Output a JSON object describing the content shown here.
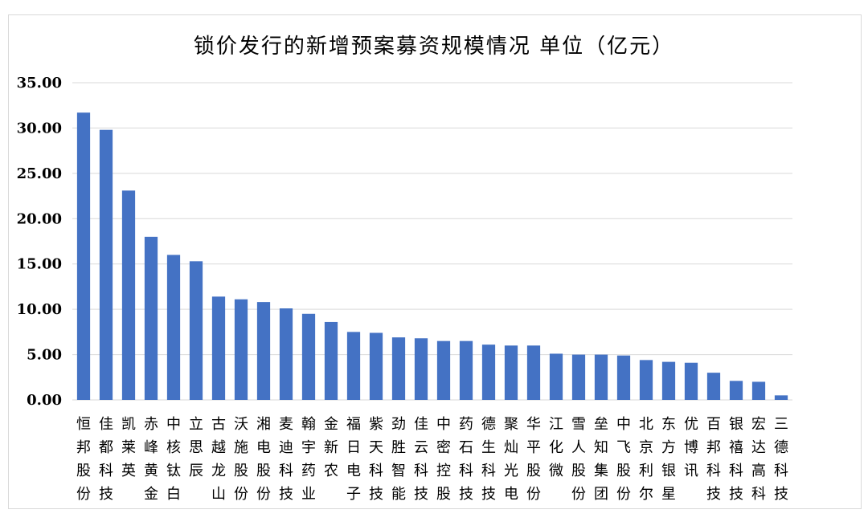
{
  "chart_data": {
    "type": "bar",
    "title": "锁价发行的新增预案募资规模情况  单位（亿元）",
    "xlabel": "",
    "ylabel": "",
    "ylim": [
      0,
      35
    ],
    "yticks": [
      "0.00",
      "5.00",
      "10.00",
      "15.00",
      "20.00",
      "25.00",
      "30.00",
      "35.00"
    ],
    "grid": true,
    "legend": "none",
    "bar_color": "#4472C4",
    "categories": [
      "恒邦股份",
      "佳都科技",
      "凯莱英",
      "赤峰黄金",
      "中核钛白",
      "立思辰",
      "古越龙山",
      "沃施股份",
      "湘电股份",
      "麦迪科技",
      "翰宇药业",
      "金新农",
      "福日电子",
      "紫天科技",
      "劲胜智能",
      "佳云科技",
      "中密控股",
      "药石科技",
      "德生科技",
      "聚灿光电",
      "华平股份",
      "江化微",
      "雪人股份",
      "垒知集团",
      "中飞股份",
      "北京利尔",
      "东方银星",
      "优博讯",
      "百邦科技",
      "银禧科技",
      "宏达高科",
      "三德科技"
    ],
    "values": [
      31.7,
      29.8,
      23.1,
      18.0,
      16.0,
      15.3,
      11.4,
      11.1,
      10.8,
      10.1,
      9.5,
      8.6,
      7.5,
      7.4,
      6.9,
      6.8,
      6.5,
      6.5,
      6.1,
      6.0,
      6.0,
      5.1,
      5.0,
      5.0,
      4.9,
      4.4,
      4.2,
      4.1,
      3.0,
      2.1,
      2.0,
      0.5
    ]
  }
}
